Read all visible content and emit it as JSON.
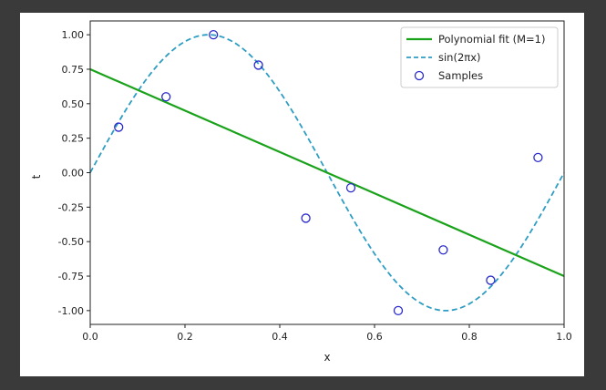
{
  "chart_data": {
    "type": "line",
    "title": "",
    "xlabel": "x",
    "ylabel": "t",
    "xlim": [
      0.0,
      1.0
    ],
    "ylim": [
      -1.1,
      1.1
    ],
    "xticks": [
      "0.0",
      "0.2",
      "0.4",
      "0.6",
      "0.8",
      "1.0"
    ],
    "yticks": [
      "1.00",
      "0.75",
      "0.50",
      "0.25",
      "0.00",
      "-0.25",
      "-0.50",
      "-0.75",
      "-1.00"
    ],
    "grid": false,
    "legend_position": "top-right",
    "series": [
      {
        "name": "Polynomial fit (M=1)",
        "kind": "line",
        "color": "#1aa21a",
        "x": [
          0.0,
          1.0
        ],
        "y": [
          0.75,
          -0.75
        ]
      },
      {
        "name": "sin(2πx)",
        "kind": "dashed-line",
        "color": "#2e9dc4",
        "function": "sin(2*pi*x)"
      },
      {
        "name": "Samples",
        "kind": "scatter",
        "color": "#2a2acc",
        "x": [
          0.06,
          0.16,
          0.26,
          0.355,
          0.455,
          0.55,
          0.65,
          0.745,
          0.845,
          0.945
        ],
        "y": [
          0.33,
          0.55,
          1.0,
          0.78,
          -0.33,
          -0.11,
          -1.0,
          -0.56,
          -0.78,
          0.11
        ]
      }
    ]
  }
}
